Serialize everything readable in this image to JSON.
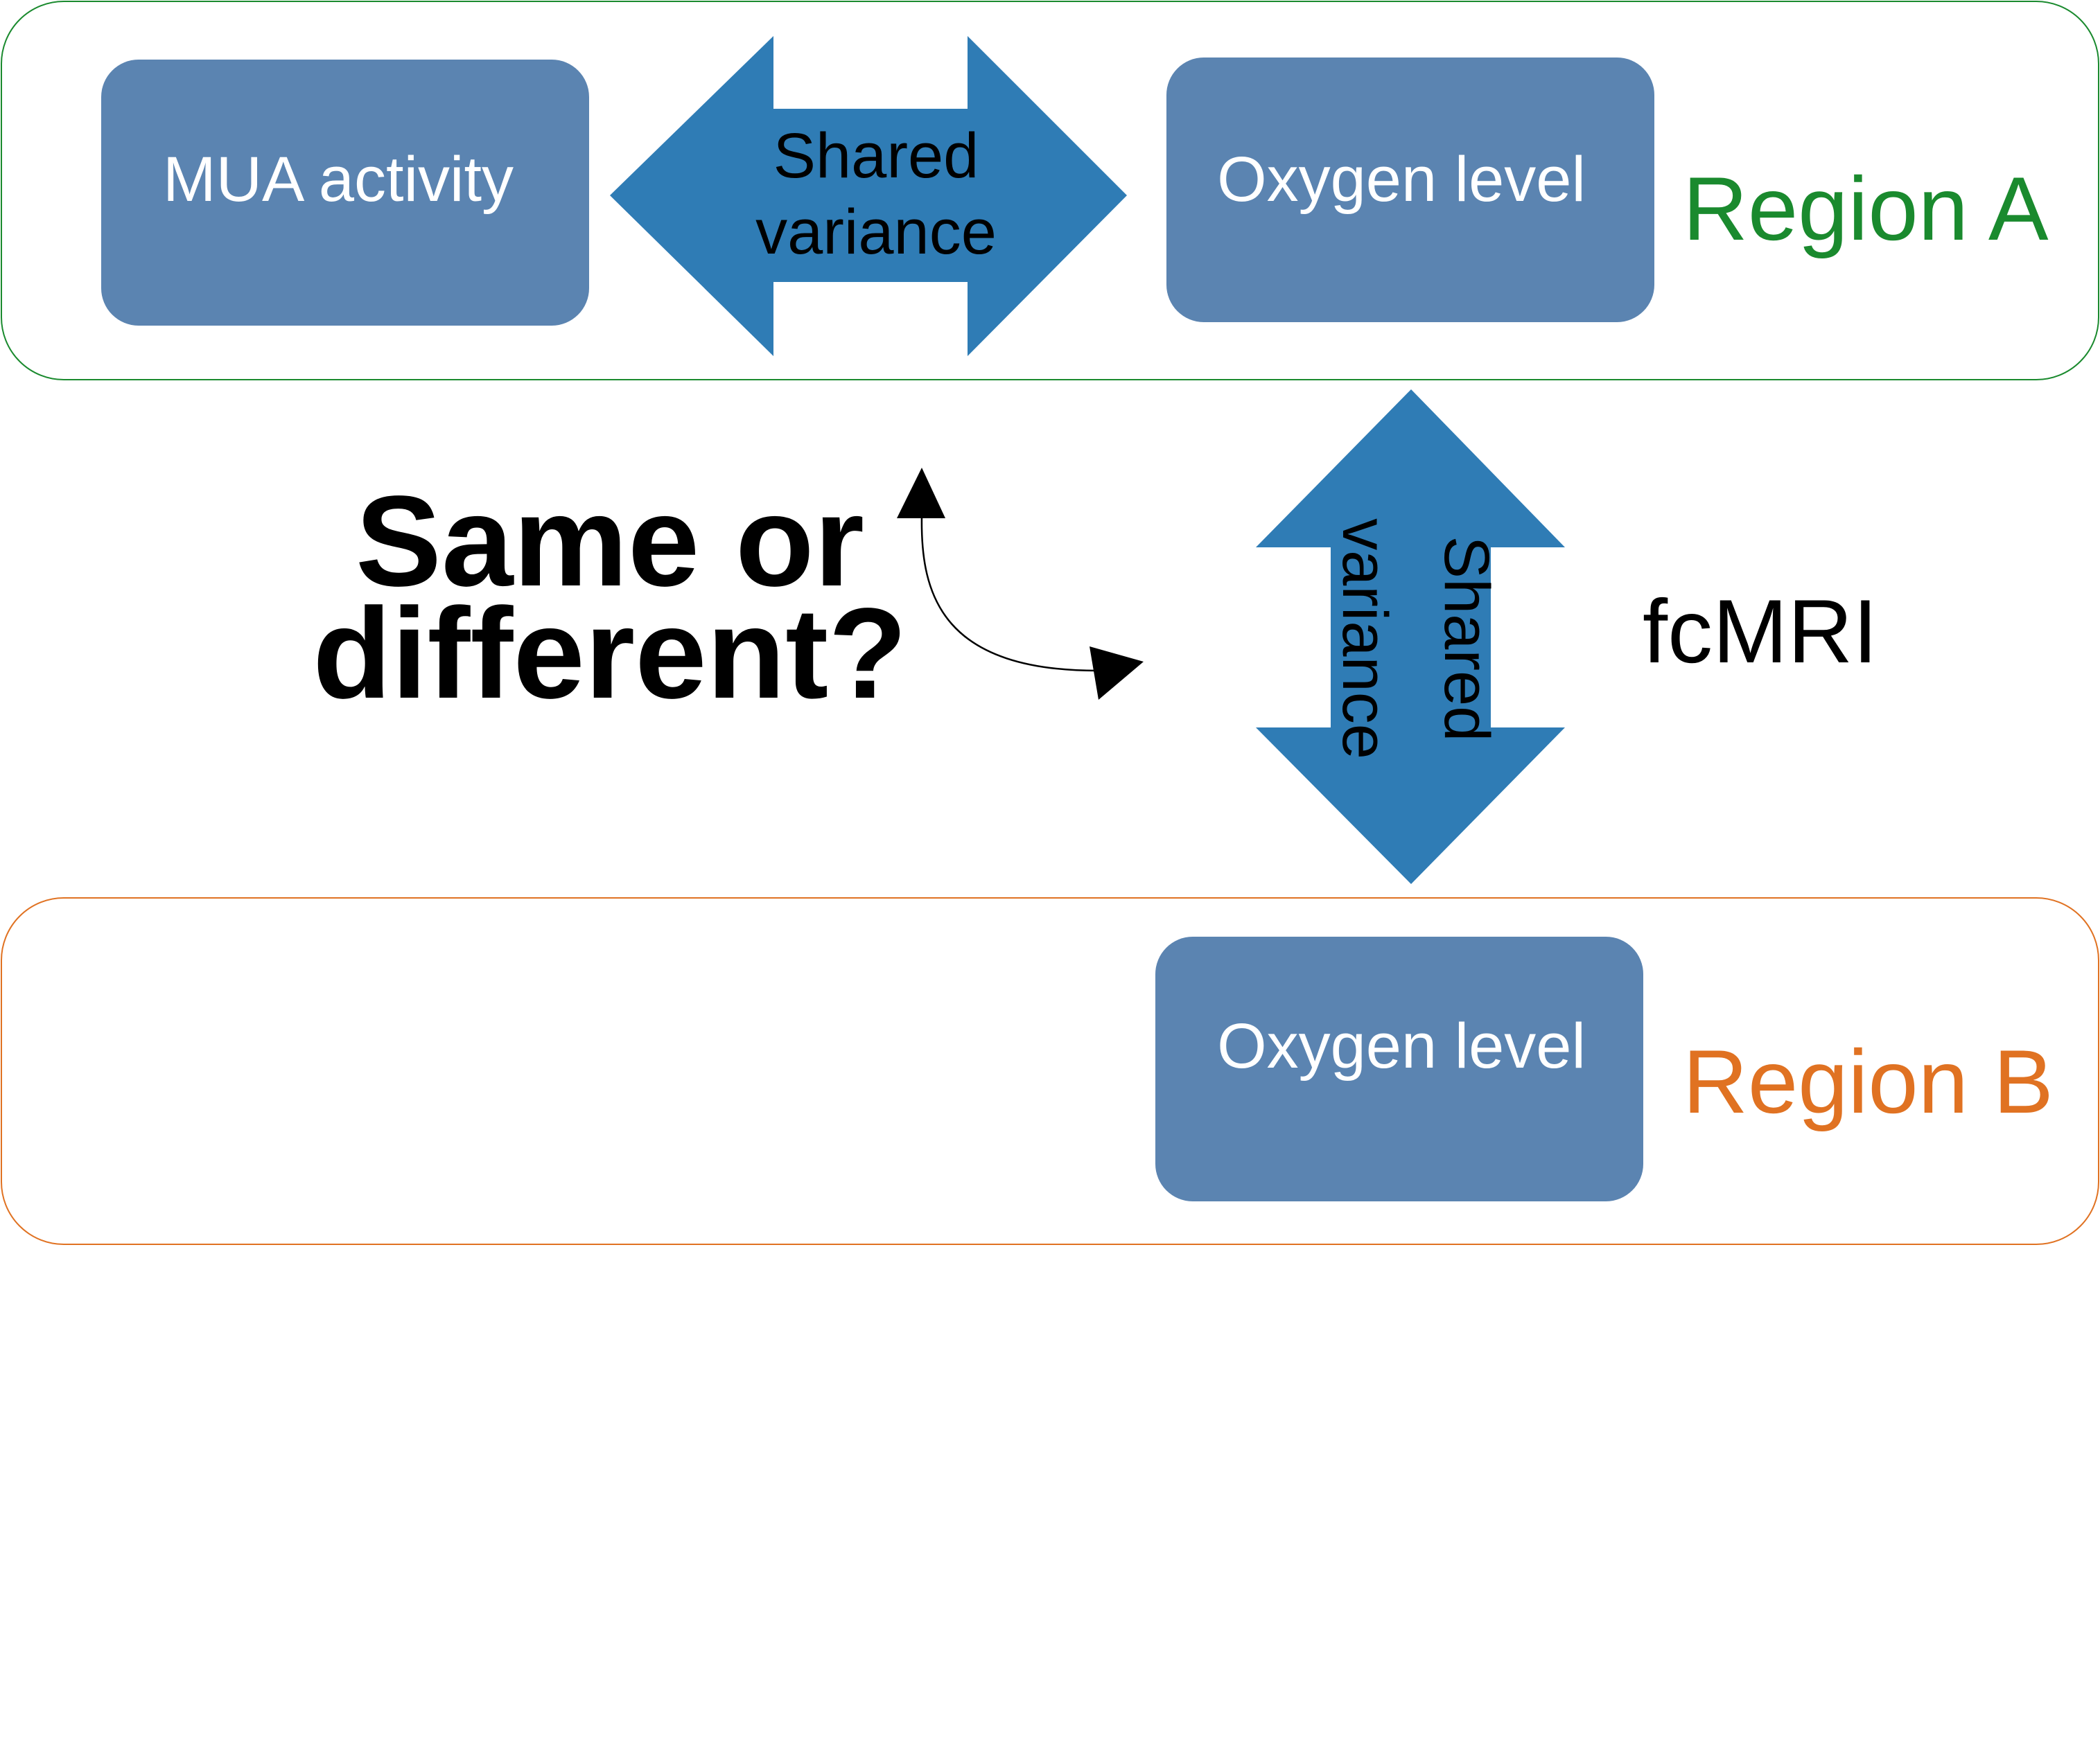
{
  "colors": {
    "box_fill": "#5b84b1",
    "arrow_fill": "#2f7cb5",
    "region_a": "#1a8a2e",
    "region_b": "#e07222",
    "text_dark": "#000000",
    "text_light": "#ffffff"
  },
  "region_a": {
    "label": "Region A",
    "mua_box": "MUA activity",
    "oxygen_box": "Oxygen level",
    "arrow_line1": "Shared",
    "arrow_line2": "variance"
  },
  "region_b": {
    "label": "Region B",
    "oxygen_box": "Oxygen level"
  },
  "vertical_arrow": {
    "line1": "Shared",
    "line2": "variance"
  },
  "fcmri_label": "fcMRI",
  "question": {
    "line1": "Same or",
    "line2": "different?"
  }
}
